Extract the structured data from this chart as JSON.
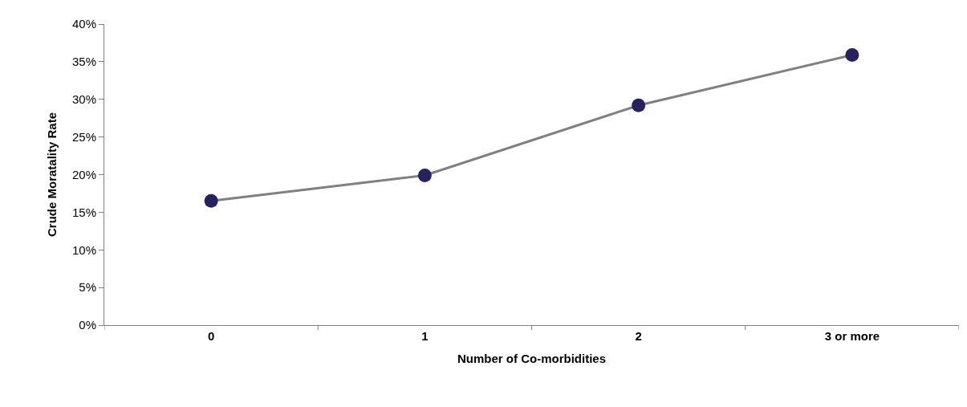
{
  "chart_data": {
    "type": "line",
    "xlabel": "Number of Co-morbidities",
    "ylabel": "Crude Moratality Rate",
    "categories": [
      "0",
      "1",
      "2",
      "3 or more"
    ],
    "series": [
      {
        "color": "#262262",
        "values": [
          16.5,
          19.9,
          29.2,
          35.9
        ]
      }
    ],
    "ylim": [
      0,
      40
    ],
    "yticks": [
      {
        "value": 0,
        "label": "0%"
      },
      {
        "value": 5,
        "label": "5%"
      },
      {
        "value": 10,
        "label": "10%"
      },
      {
        "value": 15,
        "label": "15%"
      },
      {
        "value": 20,
        "label": "20%"
      },
      {
        "value": 25,
        "label": "25%"
      },
      {
        "value": 30,
        "label": "30%"
      },
      {
        "value": 35,
        "label": "35%"
      },
      {
        "value": 40,
        "label": "40%"
      }
    ],
    "legend": false,
    "marker": "circle",
    "line_style": "solid"
  }
}
